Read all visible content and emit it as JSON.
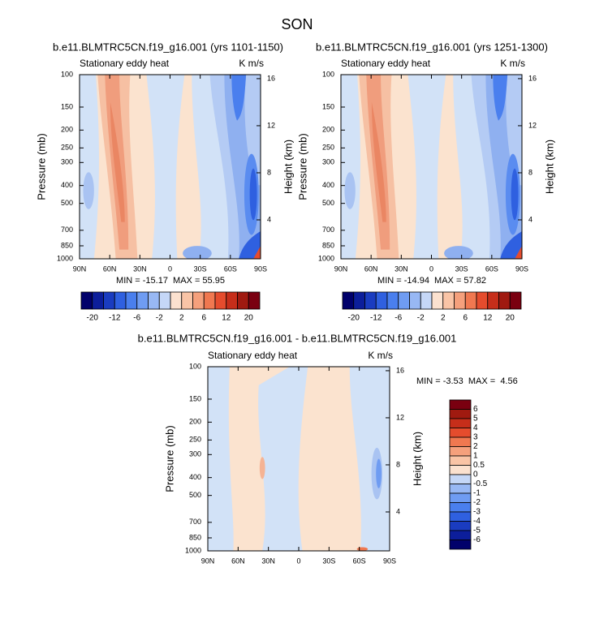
{
  "title": "SON",
  "chart_data": [
    {
      "type": "contour",
      "title": "b.e11.BLMTRC5CN.f19_g16.001 (yrs 1101-1150)",
      "subtitle": "Stationary eddy heat",
      "units": "K m/s",
      "y_label": "Pressure (mb)",
      "y2_label": "Height (km)",
      "stats": "MIN = -15.17  MAX = 55.95",
      "xlim": [
        90,
        -90
      ],
      "xticks": [
        {
          "value": 90,
          "label": "90N"
        },
        {
          "value": 60,
          "label": "60N"
        },
        {
          "value": 30,
          "label": "30N"
        },
        0,
        {
          "value": -30,
          "label": "30S"
        },
        {
          "value": -60,
          "label": "60S"
        },
        {
          "value": -90,
          "label": "90S"
        }
      ],
      "ylim": [
        1000,
        100
      ],
      "yscale": "log",
      "yticks": [
        100,
        150,
        200,
        250,
        300,
        400,
        500,
        700,
        850,
        1000
      ],
      "y2lim": [
        0.69,
        16.34
      ],
      "y2ticks": [
        4,
        8,
        12,
        16
      ]
    },
    {
      "type": "contour",
      "title": "b.e11.BLMTRC5CN.f19_g16.001 (yrs 1251-1300)",
      "subtitle": "Stationary eddy heat",
      "units": "K m/s",
      "y_label": "Pressure (mb)",
      "y2_label": "Height (km)",
      "stats": "MIN = -14.94  MAX = 57.82",
      "xlim": [
        90,
        -90
      ],
      "xticks": [
        {
          "value": 90,
          "label": "90N"
        },
        {
          "value": 60,
          "label": "60N"
        },
        {
          "value": 30,
          "label": "30N"
        },
        0,
        {
          "value": -30,
          "label": "30S"
        },
        {
          "value": -60,
          "label": "60S"
        },
        {
          "value": -90,
          "label": "90S"
        }
      ],
      "ylim": [
        1000,
        100
      ],
      "yscale": "log",
      "yticks": [
        100,
        150,
        200,
        250,
        300,
        400,
        500,
        700,
        850,
        1000
      ],
      "y2lim": [
        0.69,
        16.34
      ],
      "y2ticks": [
        4,
        8,
        12,
        16
      ]
    },
    {
      "type": "contour",
      "title": "b.e11.BLMTRC5CN.f19_g16.001 - b.e11.BLMTRC5CN.f19_g16.001",
      "subtitle": "Stationary eddy heat",
      "units": "K m/s",
      "y_label": "Pressure (mb)",
      "y2_label": "Height (km)",
      "stats": "MIN = -3.53  MAX =  4.56",
      "xlim": [
        90,
        -90
      ],
      "xticks": [
        {
          "value": 90,
          "label": "90N"
        },
        {
          "value": 60,
          "label": "60N"
        },
        {
          "value": 30,
          "label": "30N"
        },
        0,
        {
          "value": -30,
          "label": "30S"
        },
        {
          "value": -60,
          "label": "60S"
        },
        {
          "value": -90,
          "label": "90S"
        }
      ],
      "ylim": [
        1000,
        100
      ],
      "yscale": "log",
      "yticks": [
        100,
        150,
        200,
        250,
        300,
        400,
        500,
        700,
        850,
        1000
      ],
      "y2lim": [
        0.69,
        16.34
      ],
      "y2ticks": [
        4,
        8,
        12,
        16
      ]
    }
  ],
  "colorbars": [
    {
      "orientation": "horizontal",
      "colors": [
        "#00006b",
        "#0c1e9b",
        "#1a3cc0",
        "#2f60e0",
        "#4a7fee",
        "#6f9cf2",
        "#98b8f4",
        "#c5d7f7",
        "#fbe1cf",
        "#f9c4a6",
        "#f5a07c",
        "#f07850",
        "#e54c2d",
        "#c62e1a",
        "#a01a10",
        "#7a0010"
      ],
      "labels": [
        -20,
        -12,
        -6,
        -2,
        2,
        6,
        12,
        20
      ]
    },
    {
      "orientation": "horizontal",
      "colors": [
        "#00006b",
        "#0c1e9b",
        "#1a3cc0",
        "#2f60e0",
        "#4a7fee",
        "#6f9cf2",
        "#98b8f4",
        "#c5d7f7",
        "#fbe1cf",
        "#f9c4a6",
        "#f5a07c",
        "#f07850",
        "#e54c2d",
        "#c62e1a",
        "#a01a10",
        "#7a0010"
      ],
      "labels": [
        -20,
        -12,
        -6,
        -2,
        2,
        6,
        12,
        20
      ]
    },
    {
      "orientation": "vertical",
      "colors": [
        "#7a0010",
        "#a01a10",
        "#c62e1a",
        "#e54c2d",
        "#f07850",
        "#f5a07c",
        "#f9c4a6",
        "#fbe1cf",
        "#c5d7f7",
        "#98b8f4",
        "#6f9cf2",
        "#4a7fee",
        "#2f60e0",
        "#1a3cc0",
        "#0c1e9b",
        "#00006b"
      ],
      "labels": [
        6,
        5,
        4,
        3,
        2,
        1,
        0.5,
        0,
        -0.5,
        -1,
        -2,
        -3,
        -4,
        -5,
        -6
      ]
    }
  ]
}
